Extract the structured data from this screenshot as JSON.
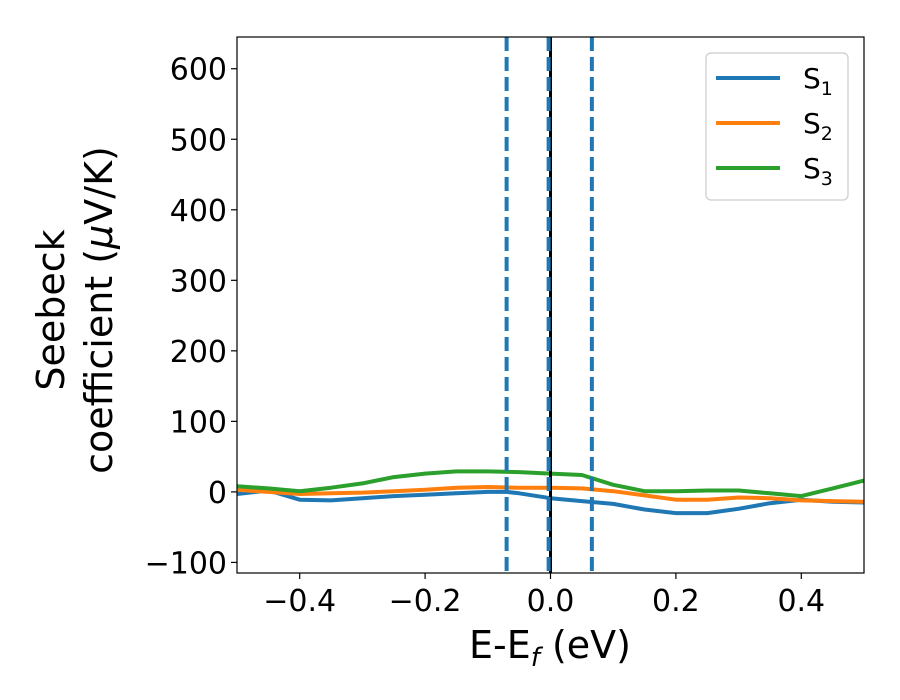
{
  "chart_data": {
    "type": "line",
    "xlabel": {
      "main": "E-E",
      "sub": "f",
      "unit": " (eV)"
    },
    "ylabel": {
      "line1": "Seebeck",
      "line2_pre": "coefficient  (",
      "mu": "μ",
      "line2_post": "V/K)"
    },
    "xlim": [
      -0.5,
      0.5
    ],
    "ylim": [
      -115,
      645
    ],
    "x_ticks": [
      -0.4,
      -0.2,
      0.0,
      0.2,
      0.4
    ],
    "x_tick_labels": [
      "−0.4",
      "−0.2",
      "0.0",
      "0.2",
      "0.4"
    ],
    "y_ticks": [
      -100,
      0,
      100,
      200,
      300,
      400,
      500,
      600
    ],
    "y_tick_labels": [
      "−100",
      "0",
      "100",
      "200",
      "300",
      "400",
      "500",
      "600"
    ],
    "legend_position": "top-right",
    "series": [
      {
        "name": "S",
        "name_sub": "1",
        "color": "#1f77b4",
        "x": [
          -0.5,
          -0.45,
          -0.4,
          -0.35,
          -0.3,
          -0.25,
          -0.2,
          -0.15,
          -0.1,
          -0.07,
          -0.05,
          0.0,
          0.05,
          0.1,
          0.15,
          0.2,
          0.25,
          0.3,
          0.35,
          0.4,
          0.45,
          0.5
        ],
        "y": [
          -3,
          2,
          -11,
          -12,
          -9,
          -6,
          -4,
          -2,
          0,
          0,
          -2,
          -9,
          -13,
          -17,
          -25,
          -30,
          -30,
          -24,
          -16,
          -11,
          -14,
          -15
        ]
      },
      {
        "name": "S",
        "name_sub": "2",
        "color": "#ff7f0e",
        "x": [
          -0.5,
          -0.45,
          -0.4,
          -0.35,
          -0.3,
          -0.25,
          -0.2,
          -0.15,
          -0.1,
          -0.05,
          0.0,
          0.05,
          0.1,
          0.15,
          0.2,
          0.25,
          0.3,
          0.35,
          0.4,
          0.45,
          0.5
        ],
        "y": [
          3,
          0,
          -3,
          -2,
          -1,
          1,
          3,
          6,
          7,
          6,
          6,
          5,
          1,
          -5,
          -11,
          -11,
          -8,
          -9,
          -12,
          -13,
          -14
        ]
      },
      {
        "name": "S",
        "name_sub": "3",
        "color": "#2ca02c",
        "x": [
          -0.5,
          -0.45,
          -0.4,
          -0.35,
          -0.3,
          -0.25,
          -0.2,
          -0.15,
          -0.1,
          -0.05,
          0.0,
          0.05,
          0.1,
          0.15,
          0.2,
          0.25,
          0.3,
          0.35,
          0.4,
          0.45,
          0.5
        ],
        "y": [
          8,
          5,
          1,
          6,
          12,
          21,
          26,
          29,
          29,
          28,
          26,
          24,
          10,
          1,
          1,
          2,
          2,
          -2,
          -6,
          5,
          16
        ]
      }
    ],
    "vertical_lines": [
      {
        "x": -0.07,
        "style": "dashed",
        "color": "#1f77b4"
      },
      {
        "x": 0.0,
        "style": "solid",
        "color": "#000000"
      },
      {
        "x": -0.003,
        "style": "dashed",
        "color": "#1f77b4"
      },
      {
        "x": 0.066,
        "style": "dashed",
        "color": "#1f77b4"
      }
    ]
  }
}
